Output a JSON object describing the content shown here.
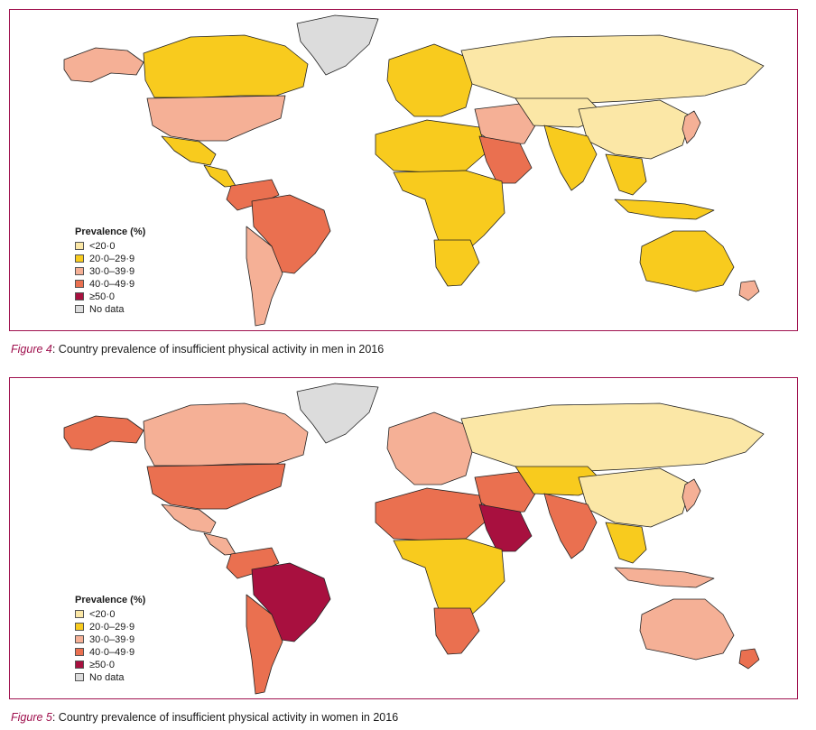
{
  "legend": {
    "title": "Prevalence (%)",
    "categories": [
      {
        "label": "<20·0",
        "color": "#fbe7a6"
      },
      {
        "label": "20·0–29·9",
        "color": "#f8cb1e"
      },
      {
        "label": "30·0–39·9",
        "color": "#f5b096"
      },
      {
        "label": "40·0–49·9",
        "color": "#ea7050"
      },
      {
        "label": "≥50·0",
        "color": "#a8103f"
      },
      {
        "label": "No data",
        "color": "#dcdcdc"
      }
    ]
  },
  "figures": [
    {
      "label": "Figure 4",
      "title": ": Country prevalence of insufficient physical activity in men in 2016",
      "regions": {
        "north_america": 1,
        "canada": 1,
        "usa": 2,
        "alaska": 2,
        "greenland": 5,
        "central_america": 1,
        "south_america_north": 3,
        "brazil": 3,
        "south_america_south": 2,
        "europe": 1,
        "russia": 0,
        "middle_east": 2,
        "arabia": 3,
        "north_africa": 1,
        "africa": 1,
        "south_africa": 1,
        "central_asia": 0,
        "china": 0,
        "india": 1,
        "southeast_asia": 1,
        "indonesia": 1,
        "japan": 2,
        "australia": 1,
        "new_zealand": 2
      }
    },
    {
      "label": "Figure 5",
      "title": ": Country prevalence of insufficient physical activity in women in 2016",
      "regions": {
        "north_america": 2,
        "canada": 2,
        "usa": 3,
        "alaska": 3,
        "greenland": 5,
        "central_america": 2,
        "south_america_north": 3,
        "brazil": 4,
        "south_america_south": 3,
        "europe": 2,
        "russia": 0,
        "middle_east": 3,
        "arabia": 4,
        "north_africa": 3,
        "africa": 1,
        "south_africa": 3,
        "central_asia": 1,
        "china": 0,
        "india": 3,
        "southeast_asia": 1,
        "indonesia": 2,
        "japan": 2,
        "australia": 2,
        "new_zealand": 3
      }
    }
  ]
}
